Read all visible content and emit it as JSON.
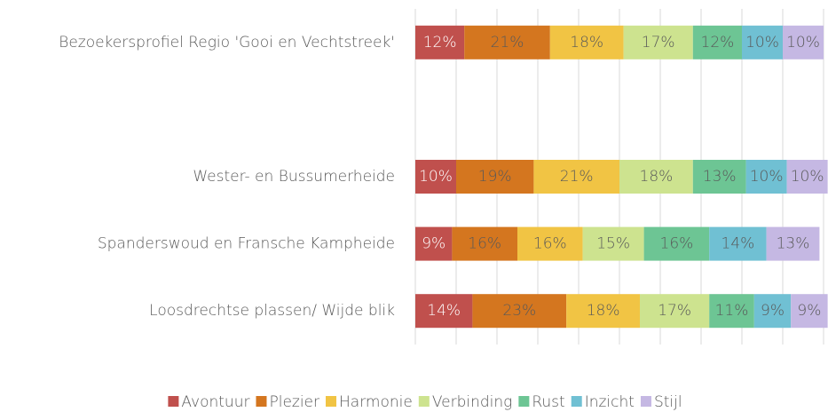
{
  "chart_data": {
    "type": "stacked-bar-horizontal",
    "categories": [
      "Bezoekersprofiel Regio 'Gooi en Vechtstreek'",
      null,
      "Wester- en Bussumerheide",
      "Spanderswoud en Fransche Kampheide",
      "Loosdrechtse plassen/ Wijde blik"
    ],
    "series": [
      {
        "name": "Avontuur",
        "color": "#c0504d",
        "values": [
          12,
          null,
          10,
          9,
          14
        ],
        "value_labels": [
          "12%",
          null,
          "10%",
          "9%",
          "14%"
        ]
      },
      {
        "name": "Plezier",
        "color": "#d4761f",
        "values": [
          21,
          null,
          19,
          16,
          23
        ],
        "value_labels": [
          "21%",
          null,
          "19%",
          "16%",
          "23%"
        ]
      },
      {
        "name": "Harmonie",
        "color": "#f1c444",
        "values": [
          18,
          null,
          21,
          16,
          18
        ],
        "value_labels": [
          "18%",
          null,
          "21%",
          "16%",
          "18%"
        ]
      },
      {
        "name": "Verbinding",
        "color": "#cde38f",
        "values": [
          17,
          null,
          18,
          15,
          17
        ],
        "value_labels": [
          "17%",
          null,
          "18%",
          "15%",
          "17%"
        ]
      },
      {
        "name": "Rust",
        "color": "#6dc594",
        "values": [
          12,
          null,
          13,
          16,
          11
        ],
        "value_labels": [
          "12%",
          null,
          "13%",
          "16%",
          "11%"
        ]
      },
      {
        "name": "Inzicht",
        "color": "#70c0d3",
        "values": [
          10,
          null,
          10,
          14,
          9
        ],
        "value_labels": [
          "10%",
          null,
          "10%",
          "14%",
          "9%"
        ]
      },
      {
        "name": "Stijl",
        "color": "#c5b8e3",
        "values": [
          10,
          null,
          10,
          13,
          9
        ],
        "value_labels": [
          "10%",
          null,
          "10%",
          "13%",
          "9%"
        ]
      }
    ],
    "xticks": [
      0,
      10,
      20,
      30,
      40,
      50,
      60,
      70,
      80,
      90,
      100
    ],
    "grid": true,
    "legend": "bottom"
  }
}
